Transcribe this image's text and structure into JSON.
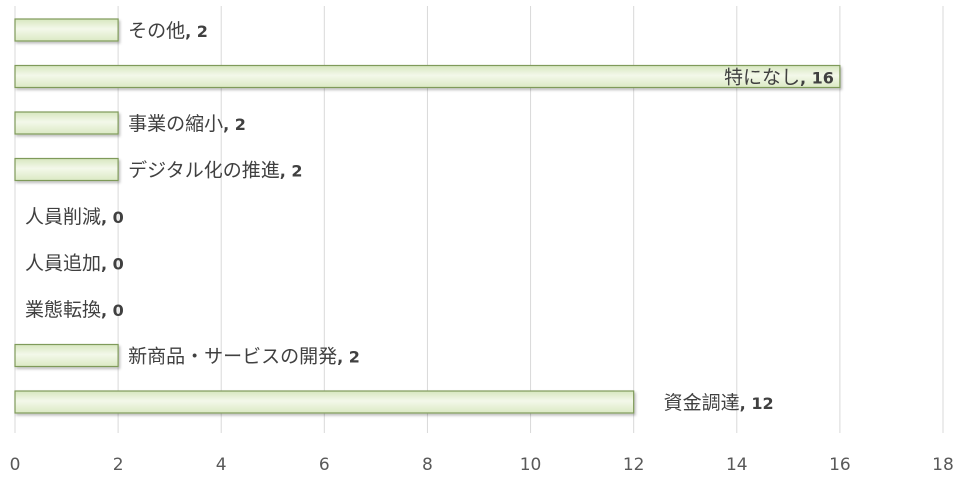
{
  "chart_data": {
    "type": "bar",
    "orientation": "horizontal",
    "categories": [
      "その他",
      "特になし",
      "事業の縮小",
      "デジタル化の推進",
      "人員削減",
      "人員追加",
      "業態転換",
      "新商品・サービスの開発",
      "資金調達"
    ],
    "values": [
      2,
      16,
      2,
      2,
      0,
      0,
      0,
      2,
      12
    ],
    "xlim": [
      0,
      18
    ],
    "xticks": [
      0,
      2,
      4,
      6,
      8,
      10,
      12,
      14,
      16,
      18
    ],
    "grid": true,
    "data_labels": "category, value",
    "bar_color": "#e8f1d6",
    "bar_border_color": "#7f9a5a"
  }
}
